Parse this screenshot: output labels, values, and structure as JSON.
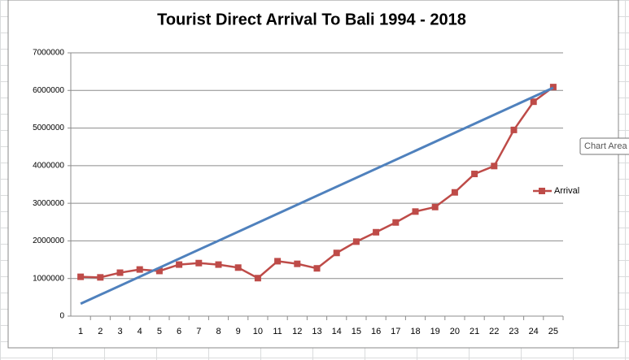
{
  "chart_data": {
    "type": "line",
    "title": "Tourist Direct Arrival To Bali 1994 - 2018",
    "categories": [
      1,
      2,
      3,
      4,
      5,
      6,
      7,
      8,
      9,
      10,
      11,
      12,
      13,
      14,
      15,
      16,
      17,
      18,
      19,
      20,
      21,
      22,
      23,
      24,
      25
    ],
    "series": [
      {
        "name": "Arrival",
        "color": "#be4b48",
        "values": [
          1045000,
          1030000,
          1155000,
          1240000,
          1200000,
          1370000,
          1410000,
          1370000,
          1290000,
          1010000,
          1460000,
          1390000,
          1270000,
          1680000,
          1980000,
          2230000,
          2490000,
          2780000,
          2900000,
          3290000,
          3780000,
          3990000,
          4950000,
          5700000,
          6090000
        ]
      }
    ],
    "trendline": {
      "color": "#4f81bd",
      "x": [
        1,
        25
      ],
      "values": [
        330000,
        6070000
      ]
    },
    "ylim": [
      0,
      7000000
    ],
    "yticks": [
      0,
      1000000,
      2000000,
      3000000,
      4000000,
      5000000,
      6000000,
      7000000
    ],
    "grid": true,
    "legend": "right",
    "tooltip": "Chart Area"
  }
}
